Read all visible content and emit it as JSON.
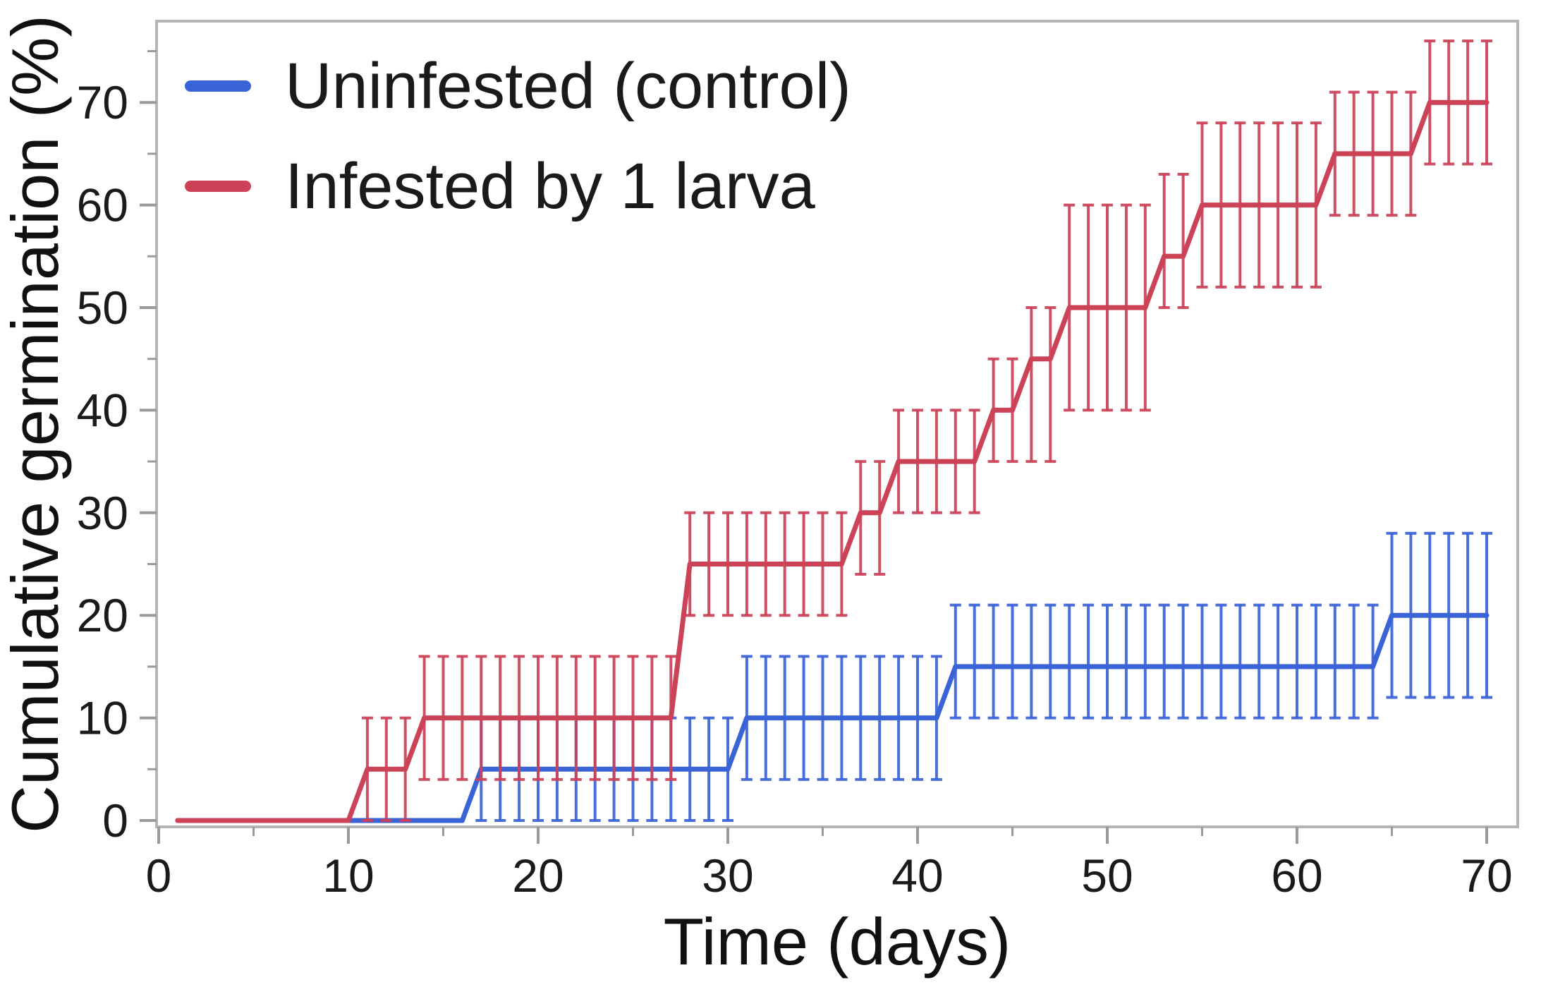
{
  "figure": {
    "background": "#ffffff",
    "kind": "step survival curve figure with per-day error bars"
  },
  "chart_data": {
    "type": "line",
    "subtype": "step",
    "title": "",
    "xlabel": "Time (days)",
    "ylabel": "Cumulative germination (%)",
    "xlim": [
      0,
      71.5
    ],
    "ylim": [
      0,
      78.5
    ],
    "x_ticks_major": [
      0,
      10,
      20,
      30,
      40,
      50,
      60,
      70
    ],
    "x_ticks_minor": [
      5,
      15,
      25,
      35,
      45,
      55,
      65
    ],
    "y_ticks_major": [
      0,
      10,
      20,
      30,
      40,
      50,
      60,
      70
    ],
    "y_ticks_minor": [
      5,
      15,
      25,
      35,
      45,
      55,
      65,
      75
    ],
    "grid": false,
    "legend_position": "top-left-inside",
    "axis_color": "#b5b5b5",
    "tick_color": "#9a9a9a",
    "text_color": "#1a1a1a",
    "series": [
      {
        "name": "Uninfested (control)",
        "color": "#3b63d8",
        "points": [
          [
            1,
            0
          ],
          [
            16,
            0
          ],
          [
            17,
            5
          ],
          [
            30,
            5
          ],
          [
            31,
            10
          ],
          [
            41,
            10
          ],
          [
            42,
            15
          ],
          [
            64,
            15
          ],
          [
            65,
            20
          ],
          [
            70,
            20
          ]
        ],
        "error_bars": [
          {
            "day_from": 17,
            "day_to": 30,
            "value": 5,
            "lo": 0,
            "hi": 10
          },
          {
            "day_from": 31,
            "day_to": 41,
            "value": 10,
            "lo": 4,
            "hi": 16
          },
          {
            "day_from": 42,
            "day_to": 64,
            "value": 15,
            "lo": 10,
            "hi": 21
          },
          {
            "day_from": 65,
            "day_to": 70,
            "value": 20,
            "lo": 12,
            "hi": 28
          }
        ]
      },
      {
        "name": "Infested by 1 larva",
        "color": "#cc4257",
        "points": [
          [
            1,
            0
          ],
          [
            10,
            0
          ],
          [
            11,
            5
          ],
          [
            13,
            5
          ],
          [
            14,
            10
          ],
          [
            27,
            10
          ],
          [
            28,
            25
          ],
          [
            36,
            25
          ],
          [
            37,
            30
          ],
          [
            38,
            30
          ],
          [
            39,
            35
          ],
          [
            43,
            35
          ],
          [
            44,
            40
          ],
          [
            45,
            40
          ],
          [
            46,
            45
          ],
          [
            47,
            45
          ],
          [
            48,
            50
          ],
          [
            52,
            50
          ],
          [
            53,
            55
          ],
          [
            54,
            55
          ],
          [
            55,
            60
          ],
          [
            61,
            60
          ],
          [
            62,
            65
          ],
          [
            66,
            65
          ],
          [
            67,
            70
          ],
          [
            70,
            70
          ]
        ],
        "error_bars": [
          {
            "day_from": 11,
            "day_to": 13,
            "value": 5,
            "lo": 0,
            "hi": 10
          },
          {
            "day_from": 14,
            "day_to": 27,
            "value": 10,
            "lo": 4,
            "hi": 16
          },
          {
            "day_from": 28,
            "day_to": 36,
            "value": 25,
            "lo": 20,
            "hi": 30
          },
          {
            "day_from": 37,
            "day_to": 38,
            "value": 30,
            "lo": 24,
            "hi": 35
          },
          {
            "day_from": 39,
            "day_to": 43,
            "value": 35,
            "lo": 30,
            "hi": 40
          },
          {
            "day_from": 44,
            "day_to": 45,
            "value": 40,
            "lo": 35,
            "hi": 45
          },
          {
            "day_from": 46,
            "day_to": 47,
            "value": 45,
            "lo": 35,
            "hi": 50
          },
          {
            "day_from": 48,
            "day_to": 52,
            "value": 50,
            "lo": 40,
            "hi": 60
          },
          {
            "day_from": 53,
            "day_to": 54,
            "value": 55,
            "lo": 50,
            "hi": 63
          },
          {
            "day_from": 55,
            "day_to": 61,
            "value": 60,
            "lo": 52,
            "hi": 68
          },
          {
            "day_from": 62,
            "day_to": 66,
            "value": 65,
            "lo": 59,
            "hi": 71
          },
          {
            "day_from": 67,
            "day_to": 70,
            "value": 70,
            "lo": 64,
            "hi": 76
          }
        ]
      }
    ]
  }
}
